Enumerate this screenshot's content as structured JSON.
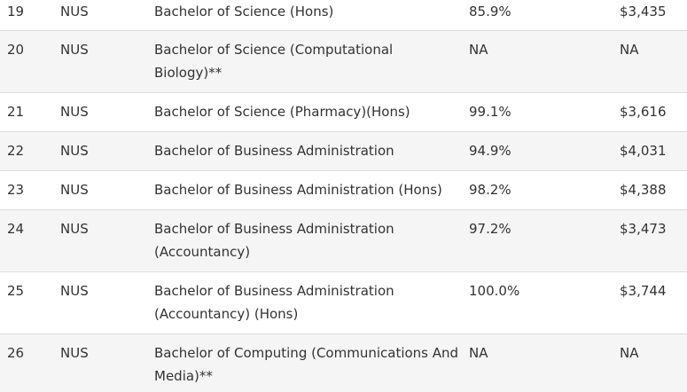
{
  "table": {
    "rows": [
      {
        "no": "19",
        "uni": "NUS",
        "degree": "Bachelor of Science (Hons)",
        "employment": "85.9%",
        "salary": "$3,435"
      },
      {
        "no": "20",
        "uni": "NUS",
        "degree": "Bachelor of Science (Computational Biology)**",
        "employment": "NA",
        "salary": "NA"
      },
      {
        "no": "21",
        "uni": "NUS",
        "degree": "Bachelor of Science (Pharmacy)(Hons)",
        "employment": "99.1%",
        "salary": "$3,616"
      },
      {
        "no": "22",
        "uni": "NUS",
        "degree": "Bachelor of Business Administration",
        "employment": "94.9%",
        "salary": "$4,031"
      },
      {
        "no": "23",
        "uni": "NUS",
        "degree": "Bachelor of Business Administration (Hons)",
        "employment": "98.2%",
        "salary": "$4,388"
      },
      {
        "no": "24",
        "uni": "NUS",
        "degree": "Bachelor of Business Administration (Accountancy)",
        "employment": "97.2%",
        "salary": "$3,473"
      },
      {
        "no": "25",
        "uni": "NUS",
        "degree": "Bachelor of Business Administration (Accountancy) (Hons)",
        "employment": "100.0%",
        "salary": "$3,744"
      },
      {
        "no": "26",
        "uni": "NUS",
        "degree": "Bachelor of Computing (Communications And Media)**",
        "employment": "NA",
        "salary": "NA"
      }
    ]
  }
}
